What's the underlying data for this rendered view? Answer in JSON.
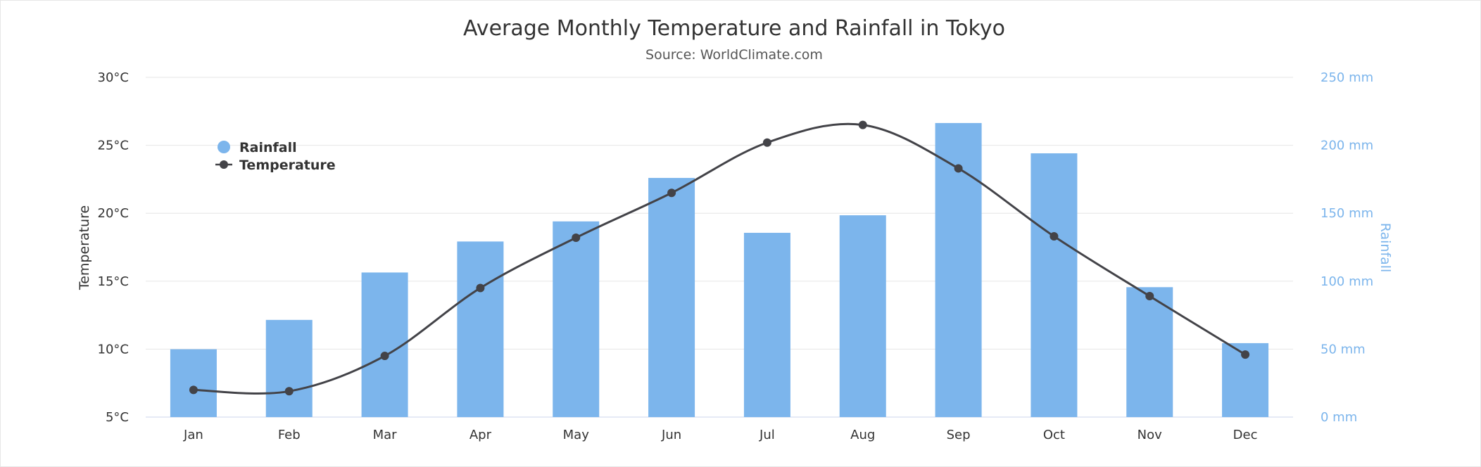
{
  "chart_data": {
    "type": "bar",
    "title": "Average Monthly Temperature and Rainfall in Tokyo",
    "subtitle": "Source: WorldClimate.com",
    "categories": [
      "Jan",
      "Feb",
      "Mar",
      "Apr",
      "May",
      "Jun",
      "Jul",
      "Aug",
      "Sep",
      "Oct",
      "Nov",
      "Dec"
    ],
    "series": [
      {
        "name": "Rainfall",
        "type": "bar",
        "axis": "right",
        "color": "#7cb5ec",
        "values": [
          49.9,
          71.5,
          106.4,
          129.2,
          144.0,
          176.0,
          135.6,
          148.5,
          216.4,
          194.1,
          95.6,
          54.4
        ]
      },
      {
        "name": "Temperature",
        "type": "line",
        "axis": "left",
        "color": "#434348",
        "values": [
          7.0,
          6.9,
          9.5,
          14.5,
          18.2,
          21.5,
          25.2,
          26.5,
          23.3,
          18.3,
          13.9,
          9.6
        ]
      }
    ],
    "y_left": {
      "label": "Temperature",
      "range": [
        5,
        30
      ],
      "ticks": [
        "5°C",
        "10°C",
        "15°C",
        "20°C",
        "25°C",
        "30°C"
      ]
    },
    "y_right": {
      "label": "Rainfall",
      "range": [
        0,
        250
      ],
      "ticks": [
        "0 mm",
        "50 mm",
        "100 mm",
        "150 mm",
        "200 mm",
        "250 mm"
      ]
    },
    "grid": true,
    "legend": {
      "position": "top-left",
      "items": [
        "Rainfall",
        "Temperature"
      ]
    }
  }
}
